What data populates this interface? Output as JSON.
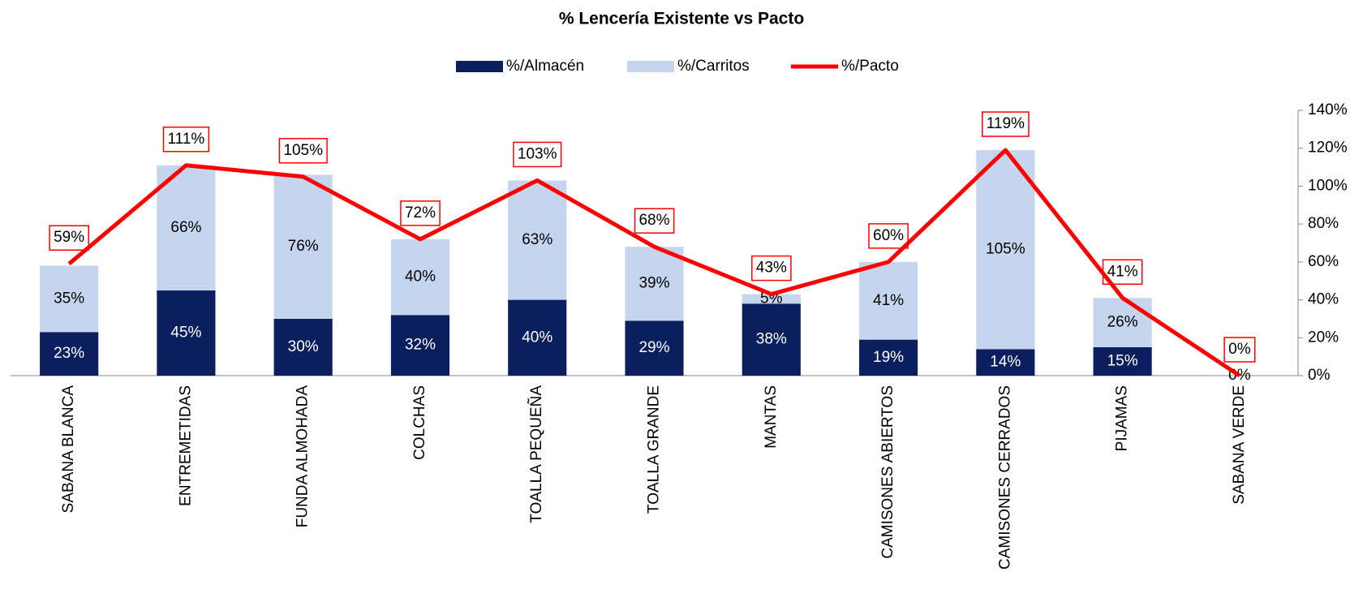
{
  "chart_data": {
    "type": "stacked_bar_line",
    "title": "% Lencería Existente vs Pacto",
    "categories": [
      "SABANA BLANCA",
      "ENTREMETIDAS",
      "FUNDA ALMOHADA",
      "COLCHAS",
      "TOALLA PEQUEÑA",
      "TOALLA GRANDE",
      "MANTAS",
      "CAMISONES ABIERTOS",
      "CAMISONES CERRADOS",
      "PIJAMAS",
      "SABANA VERDE"
    ],
    "series": [
      {
        "name": "%/Almacén",
        "type": "bar",
        "color": "#0b1f5e",
        "label_color": "#ffffff",
        "values": [
          23,
          45,
          30,
          32,
          40,
          29,
          38,
          19,
          14,
          15,
          0
        ],
        "value_labels": [
          "23%",
          "45%",
          "30%",
          "32%",
          "40%",
          "29%",
          "38%",
          "19%",
          "14%",
          "15%",
          "0%"
        ]
      },
      {
        "name": "%/Carritos",
        "type": "bar",
        "color": "#c6d5ee",
        "label_color": "#000000",
        "values": [
          35,
          66,
          76,
          40,
          63,
          39,
          5,
          41,
          105,
          26,
          null
        ],
        "value_labels": [
          "35%",
          "66%",
          "76%",
          "40%",
          "63%",
          "39%",
          "5%",
          "41%",
          "105%",
          "26%",
          null
        ]
      },
      {
        "name": "%/Pacto",
        "type": "line",
        "color": "#ff0000",
        "values": [
          59,
          111,
          105,
          72,
          103,
          68,
          43,
          60,
          119,
          41,
          0
        ],
        "value_labels": [
          "59%",
          "111%",
          "105%",
          "72%",
          "103%",
          "68%",
          "43%",
          "60%",
          "119%",
          "41%",
          "0%"
        ]
      }
    ],
    "ylim": [
      0,
      140
    ],
    "yticks": [
      {
        "value": 0,
        "label": "0%"
      },
      {
        "value": 20,
        "label": "20%"
      },
      {
        "value": 40,
        "label": "40%"
      },
      {
        "value": 60,
        "label": "60%"
      },
      {
        "value": 80,
        "label": "80%"
      },
      {
        "value": 100,
        "label": "100%"
      },
      {
        "value": 120,
        "label": "120%"
      },
      {
        "value": 140,
        "label": "140%"
      }
    ]
  }
}
